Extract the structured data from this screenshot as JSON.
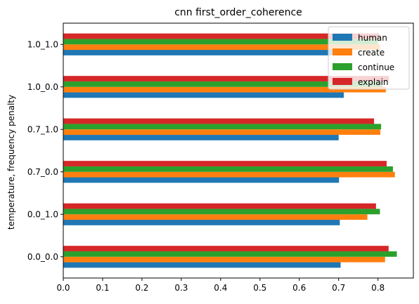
{
  "chart_data": {
    "type": "bar",
    "orientation": "horizontal",
    "title": "cnn first_order_coherence",
    "xlabel": "",
    "ylabel": "temperature, frequency penalty",
    "categories": [
      "0.0_0.0",
      "0.0_1.0",
      "0.7_0.0",
      "0.7_1.0",
      "1.0_0.0",
      "1.0_1.0"
    ],
    "series": [
      {
        "name": "human",
        "color": "#1f77b4",
        "values": [
          0.705,
          0.703,
          0.701,
          0.7,
          0.713,
          0.716
        ]
      },
      {
        "name": "create",
        "color": "#ff7f0e",
        "values": [
          0.818,
          0.773,
          0.843,
          0.806,
          0.82,
          0.805
        ]
      },
      {
        "name": "continue",
        "color": "#2ca02c",
        "values": [
          0.848,
          0.805,
          0.838,
          0.808,
          0.81,
          0.8
        ]
      },
      {
        "name": "explain",
        "color": "#d62728",
        "values": [
          0.827,
          0.795,
          0.822,
          0.79,
          0.828,
          0.803
        ]
      }
    ],
    "xlim": [
      0,
      0.89
    ],
    "xticks": [
      0.0,
      0.1,
      0.2,
      0.3,
      0.4,
      0.5,
      0.6,
      0.7,
      0.8
    ],
    "xtick_labels": [
      "0.0",
      "0.1",
      "0.2",
      "0.3",
      "0.4",
      "0.5",
      "0.6",
      "0.7",
      "0.8"
    ],
    "grid": false,
    "legend_position": "top-right"
  }
}
